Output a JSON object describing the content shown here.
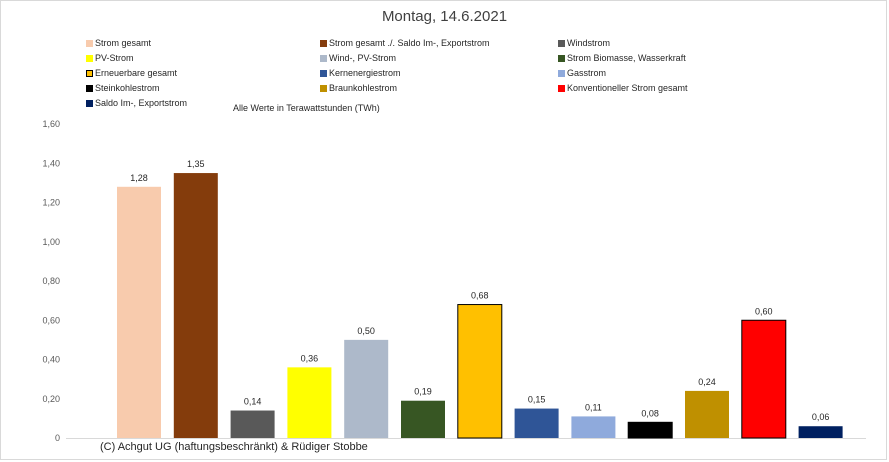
{
  "chart_data": {
    "type": "bar",
    "title": "Montag, 14.6.2021",
    "subtitle": "Alle Werte in Terawattstunden (TWh)",
    "footer": "(C) Achgut UG (haftungsbeschränkt) & Rüdiger Stobbe",
    "ylim": [
      0,
      1.6
    ],
    "yticks": [
      "0",
      "0,20",
      "0,40",
      "0,60",
      "0,80",
      "1,00",
      "1,20",
      "1,40",
      "1,60"
    ],
    "grid": false,
    "legend_position": "top",
    "series": [
      {
        "name": "Strom gesamt",
        "value": 1.28,
        "label": "1,28",
        "color": "#f8cbad"
      },
      {
        "name": "Strom gesamt ./. Saldo Im-, Exportstrom",
        "value": 1.35,
        "label": "1,35",
        "color": "#843c0c"
      },
      {
        "name": "Windstrom",
        "value": 0.14,
        "label": "0,14",
        "color": "#595959"
      },
      {
        "name": "PV-Strom",
        "value": 0.36,
        "label": "0,36",
        "color": "#ffff00"
      },
      {
        "name": "Wind-, PV-Strom",
        "value": 0.5,
        "label": "0,50",
        "color": "#adb9ca"
      },
      {
        "name": "Strom Biomasse, Wasserkraft",
        "value": 0.19,
        "label": "0,19",
        "color": "#375623"
      },
      {
        "name": "Erneuerbare gesamt",
        "value": 0.68,
        "label": "0,68",
        "color": "#ffc000"
      },
      {
        "name": "Kernenergiestrom",
        "value": 0.15,
        "label": "0,15",
        "color": "#2f5597"
      },
      {
        "name": "Gasstrom",
        "value": 0.11,
        "label": "0,11",
        "color": "#8faadc"
      },
      {
        "name": "Steinkohlestrom",
        "value": 0.08,
        "label": "0,08",
        "color": "#000000"
      },
      {
        "name": "Braunkohlestrom",
        "value": 0.24,
        "label": "0,24",
        "color": "#bf9000"
      },
      {
        "name": "Konventioneller Strom gesamt",
        "value": 0.6,
        "label": "0,60",
        "color": "#ff0000"
      },
      {
        "name": "Saldo Im-, Exportstrom",
        "value": 0.06,
        "label": "0,06",
        "color": "#002060"
      }
    ]
  }
}
